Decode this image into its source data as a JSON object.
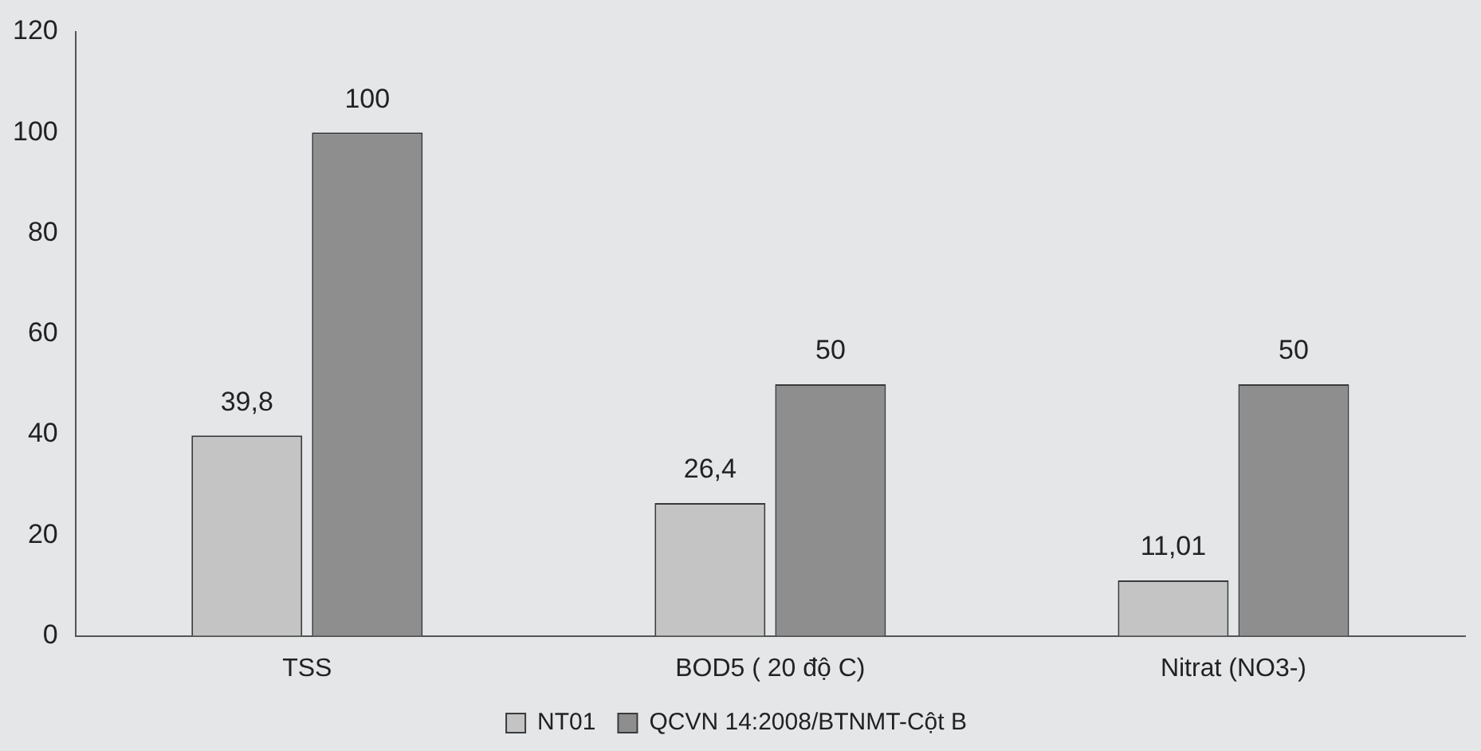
{
  "chart_data": {
    "type": "bar",
    "categories": [
      "TSS",
      "BOD5 ( 20 độ C)",
      "Nitrat (NO3-)"
    ],
    "series": [
      {
        "name": "NT01",
        "color": "#c4c4c4",
        "values": [
          39.8,
          26.4,
          11.01
        ],
        "value_labels": [
          "39,8",
          "26,4",
          "11,01"
        ]
      },
      {
        "name": "QCVN 14:2008/BTNMT-Cột B",
        "color": "#8e8e8e",
        "values": [
          100,
          50,
          50
        ],
        "value_labels": [
          "100",
          "50",
          "50"
        ]
      }
    ],
    "ylim": [
      0,
      120
    ],
    "yticks": [
      0,
      20,
      40,
      60,
      80,
      100,
      120
    ],
    "grid": false,
    "legend": "bottom"
  }
}
